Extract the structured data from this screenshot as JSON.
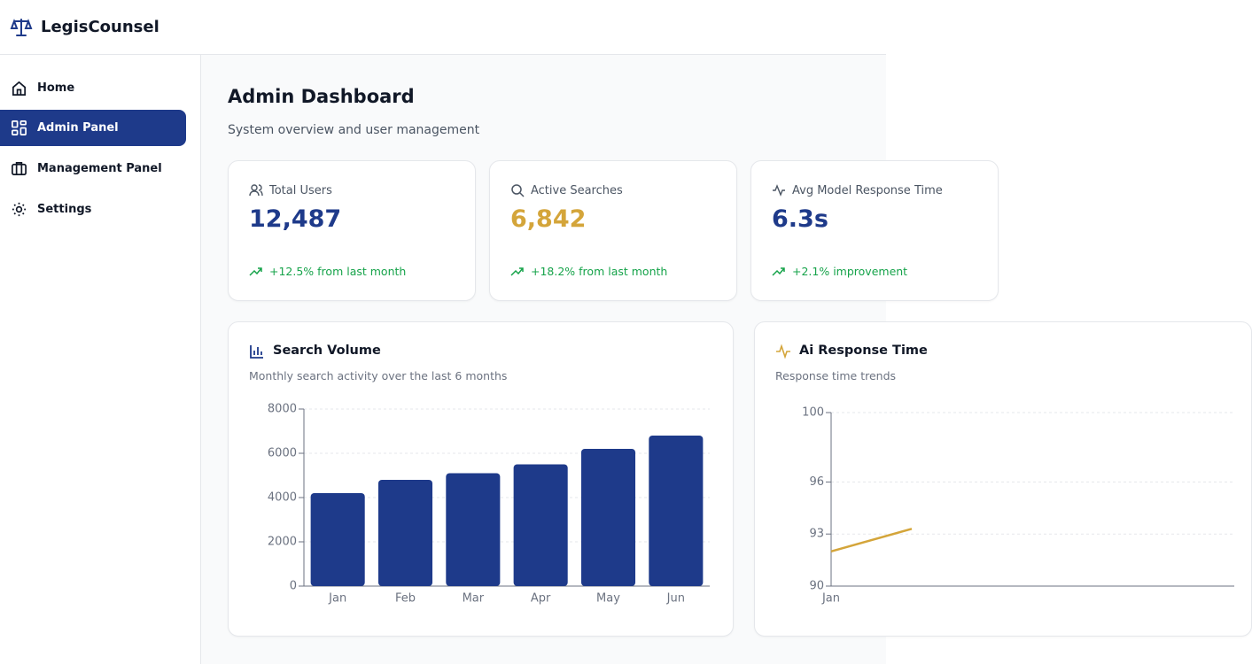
{
  "app": {
    "name": "LegisCounsel"
  },
  "nav": [
    "Home",
    "Admin Panel",
    "Management Panel",
    "Settings"
  ],
  "page": {
    "title": "Admin Dashboard",
    "subtitle": "System overview and user management"
  },
  "stats": [
    {
      "label": "Total Users",
      "value": "12,487",
      "change": "+12.5% from last month"
    },
    {
      "label": "Active Searches",
      "value": "6,842",
      "change": "+18.2% from last month"
    },
    {
      "label": "Avg Model Response Time",
      "value": "6.3s",
      "change": "+2.1% improvement"
    }
  ],
  "chart_data": [
    {
      "type": "bar",
      "title": "Search Volume",
      "subtitle": "Monthly search activity over the last 6 months",
      "categories": [
        "Jan",
        "Feb",
        "Mar",
        "Apr",
        "May",
        "Jun"
      ],
      "values": [
        4200,
        4800,
        5100,
        5500,
        6200,
        6800
      ],
      "color": "#1e3a8a",
      "ylim": [
        0,
        8000
      ],
      "yticks": [
        0,
        2000,
        4000,
        6000,
        8000
      ],
      "grid": true
    },
    {
      "type": "line",
      "title": "Ai Response Time",
      "subtitle": "Response time trends",
      "categories": [
        "Jan",
        null
      ],
      "values": [
        92,
        93.3
      ],
      "color": "#d4a53a",
      "ylim": [
        90,
        100
      ],
      "yticks": [
        90,
        93,
        96,
        100
      ],
      "grid": true
    }
  ]
}
